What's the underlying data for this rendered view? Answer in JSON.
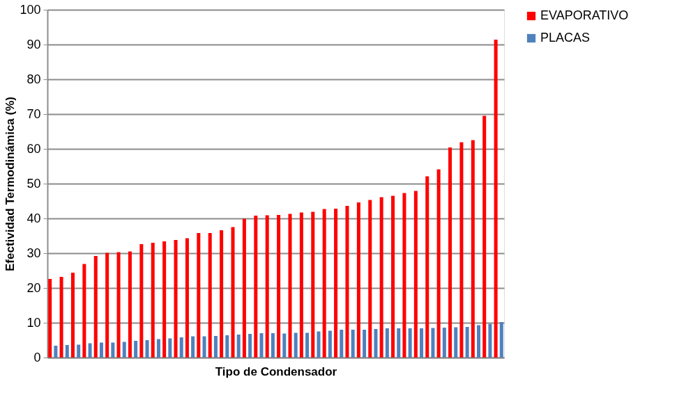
{
  "chart_data": {
    "type": "bar",
    "xlabel": "Tipo de Condensador",
    "ylabel": "Efectividad Termodinámica (%)",
    "categories": [
      null,
      null,
      null,
      null,
      null,
      null,
      null,
      null,
      null,
      null,
      null,
      null,
      null,
      null,
      null,
      null,
      null,
      null,
      null,
      null,
      null,
      null,
      null,
      null,
      null,
      null,
      null,
      null,
      null,
      null,
      null,
      null,
      null,
      null,
      null,
      null,
      null,
      null,
      null,
      null
    ],
    "series": [
      {
        "name": "EVAPORATIVO",
        "color": "#ff0000",
        "values": [
          22.6,
          23.2,
          24.4,
          26.9,
          29.2,
          30.1,
          30.3,
          30.5,
          32.6,
          33.0,
          33.4,
          33.8,
          34.3,
          35.8,
          35.8,
          36.6,
          37.5,
          39.9,
          40.8,
          40.9,
          41.0,
          41.3,
          41.7,
          41.9,
          42.7,
          42.8,
          43.6,
          44.6,
          45.3,
          46.1,
          46.5,
          47.3,
          47.9,
          52.1,
          54.1,
          60.4,
          61.9,
          62.5,
          69.5,
          91.4
        ]
      },
      {
        "name": "PLACAS",
        "color": "#4f81bd",
        "values": [
          3.4,
          3.6,
          3.7,
          4.1,
          4.3,
          4.3,
          4.5,
          4.8,
          5.0,
          5.3,
          5.5,
          5.8,
          6.1,
          6.1,
          6.2,
          6.4,
          6.6,
          6.8,
          7.0,
          7.0,
          6.9,
          7.1,
          7.1,
          7.5,
          7.7,
          8.0,
          8.0,
          8.0,
          8.2,
          8.4,
          8.4,
          8.4,
          8.4,
          8.5,
          8.6,
          8.7,
          8.8,
          9.3,
          9.7,
          10.2
        ]
      }
    ],
    "ylim": [
      0,
      100
    ],
    "yticks": [
      0,
      10,
      20,
      30,
      40,
      50,
      60,
      70,
      80,
      90,
      100
    ],
    "grid": "y",
    "legend": "right"
  }
}
